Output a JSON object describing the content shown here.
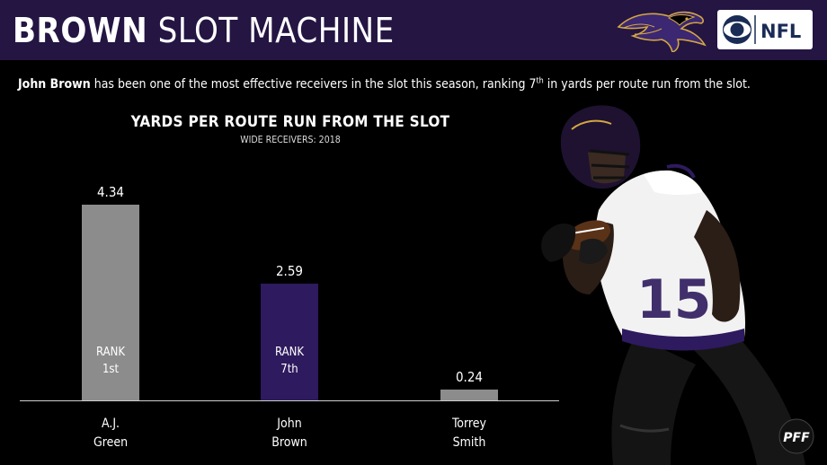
{
  "header": {
    "title_bold": "BROWN",
    "title_light": " SLOT MACHINE",
    "team_logo_icon": "ravens-logo-icon",
    "partner_logo_text": "NFL",
    "partner_logo_icon": "cbs-eye-icon"
  },
  "subline": {
    "name": "John Brown",
    "text_before_rank": " has been one of the most effective receivers in the slot this season, ranking 7",
    "rank_suffix": "th",
    "text_after_rank": " in yards per route run from the slot."
  },
  "chart_data": {
    "type": "bar",
    "title": "YARDS PER ROUTE RUN FROM THE SLOT",
    "subtitle": "WIDE RECEIVERS: 2018",
    "categories": [
      "A.J. Green",
      "John Brown",
      "Torrey Smith"
    ],
    "category_lines": [
      [
        "A.J.",
        "Green"
      ],
      [
        "John",
        "Brown"
      ],
      [
        "Torrey",
        "Smith"
      ]
    ],
    "values": [
      4.34,
      2.59,
      0.24
    ],
    "value_labels": [
      "4.34",
      "2.59",
      "0.24"
    ],
    "ranks": [
      [
        "RANK",
        "1st"
      ],
      [
        "RANK",
        "7th"
      ],
      null
    ],
    "colors": [
      "#8c8c8c",
      "#2e1a5e",
      "#8c8c8c"
    ],
    "ylim": [
      0,
      4.34
    ],
    "grid": false,
    "xlabel": "",
    "ylabel": ""
  },
  "branding": {
    "pff_text": "PFF"
  },
  "colors": {
    "header_bg": "#241543",
    "ravens_purple": "#2e1a5e",
    "bar_gray": "#8c8c8c",
    "background": "#000000"
  }
}
